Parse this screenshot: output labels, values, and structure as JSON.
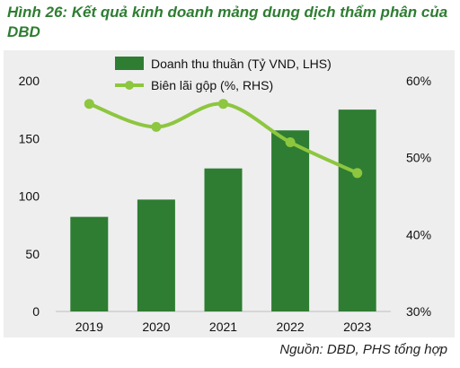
{
  "title": "Hình 26: Kết quả kinh doanh mảng dung dịch thẩm phân của DBD",
  "source": "Nguồn: DBD, PHS tổng hợp",
  "colors": {
    "bar": "#2e7d32",
    "line": "#8dc63f",
    "panel": "#eeeeee"
  },
  "chart_data": {
    "type": "bar",
    "categories": [
      "2019",
      "2020",
      "2021",
      "2022",
      "2023"
    ],
    "series": [
      {
        "name": "Doanh thu thuần (Tỷ VND, LHS)",
        "type": "bar",
        "axis": "left",
        "values": [
          82,
          97,
          124,
          157,
          175
        ]
      },
      {
        "name": "Biên lãi gộp (%, RHS)",
        "type": "line",
        "axis": "right",
        "values": [
          57,
          54,
          57,
          52,
          48
        ]
      }
    ],
    "ylim": [
      0,
      200
    ],
    "y2lim": [
      30,
      60
    ],
    "yticks": [
      "0",
      "50",
      "100",
      "150",
      "200"
    ],
    "y2ticks": [
      "30%",
      "40%",
      "50%",
      "60%"
    ],
    "legend": "top",
    "grid": false
  }
}
